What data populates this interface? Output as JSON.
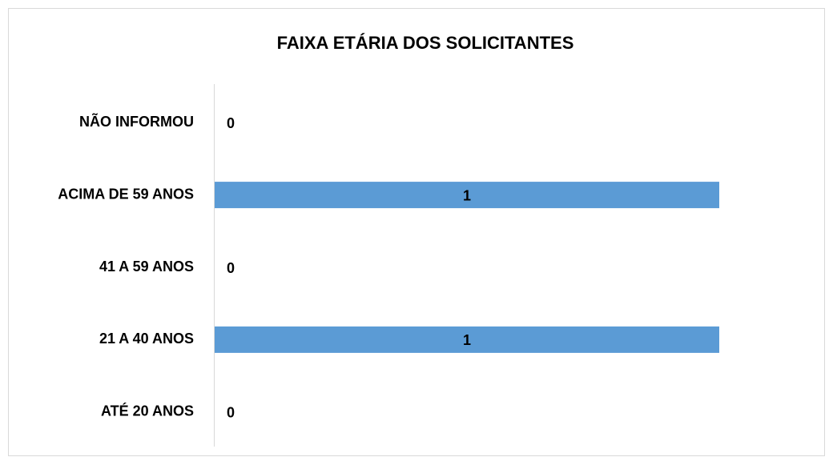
{
  "chart_data": {
    "type": "bar",
    "orientation": "horizontal",
    "title": "FAIXA ETÁRIA DOS SOLICITANTES",
    "categories": [
      "NÃO INFORMOU",
      "ACIMA DE 59 ANOS",
      "41 A 59 ANOS",
      "21 A 40 ANOS",
      "ATÉ 20 ANOS"
    ],
    "values": [
      0,
      1,
      0,
      1,
      0
    ],
    "color": "#5b9bd5",
    "xlim": [
      0,
      1
    ]
  }
}
